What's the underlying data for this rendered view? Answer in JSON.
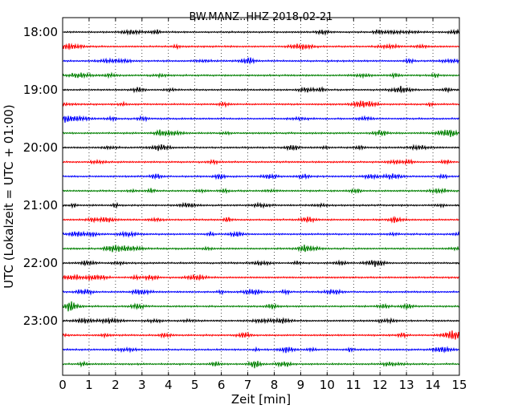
{
  "chart_data": {
    "type": "line",
    "title": "BW.MANZ..HHZ 2018-02-21",
    "xlabel": "Zeit  [min]",
    "ylabel": "UTC (Lokalzeit = UTC + 01:00)",
    "xlim": [
      0,
      15
    ],
    "x_ticks": [
      "0",
      "1",
      "2",
      "3",
      "4",
      "5",
      "6",
      "7",
      "8",
      "9",
      "10",
      "11",
      "12",
      "13",
      "14",
      "15"
    ],
    "y_tick_labels": [
      "18:00",
      "19:00",
      "20:00",
      "21:00",
      "22:00",
      "23:00"
    ],
    "grid": "vertical dotted at each minute",
    "trace_colors": [
      "#000000",
      "#ff0000",
      "#0000ff",
      "#008000"
    ],
    "trace_count": 24
  }
}
